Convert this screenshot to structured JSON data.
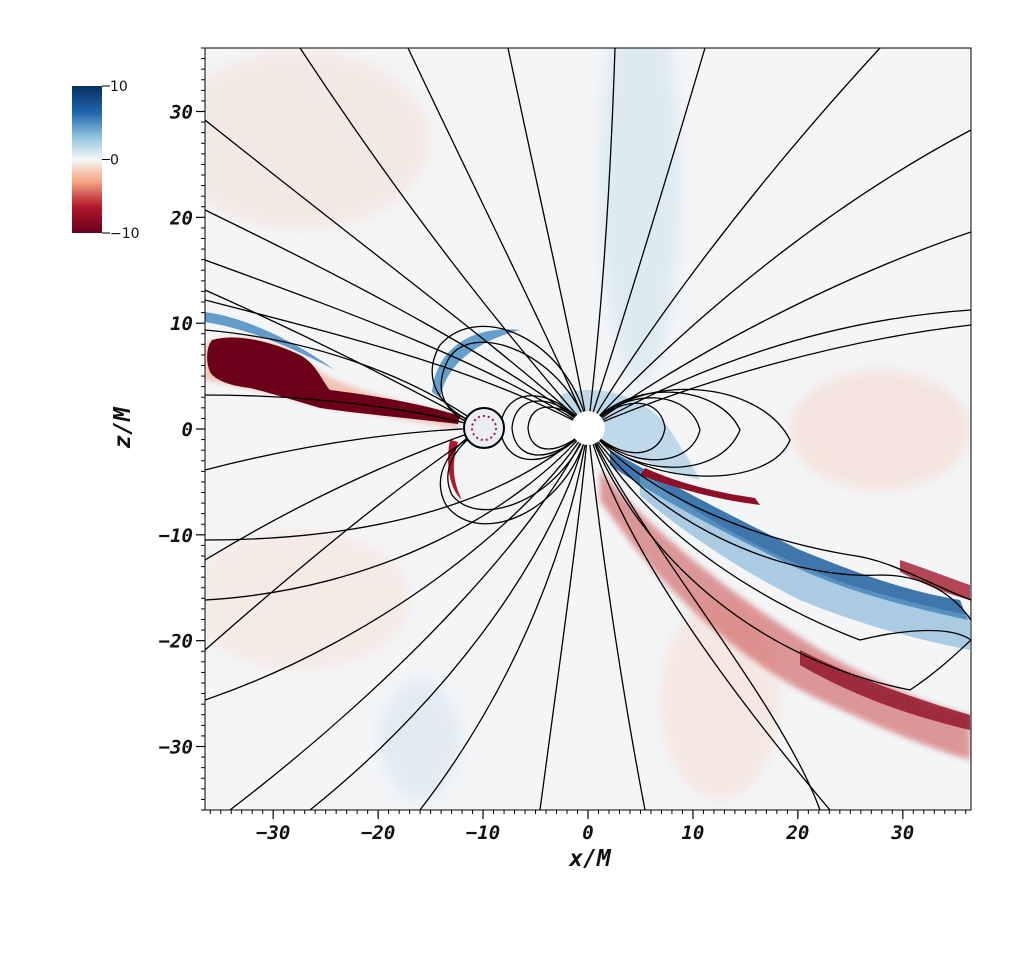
{
  "chart_data": {
    "type": "heatmap",
    "title": "",
    "xlabel": "x/M",
    "ylabel": "z/M",
    "xlim": [
      -36.5,
      36.5
    ],
    "ylim": [
      -36,
      36
    ],
    "x_ticks": [
      -30,
      -20,
      -10,
      0,
      10,
      20,
      30
    ],
    "y_ticks": [
      30,
      20,
      10,
      0,
      -10,
      -20,
      -30
    ],
    "x_tick_labels": [
      "−30",
      "−20",
      "−10",
      "0",
      "10",
      "20",
      "30"
    ],
    "y_tick_labels": [
      "30",
      "20",
      "10",
      "0",
      "−10",
      "−20",
      "−30"
    ],
    "colorbar": {
      "min": -10,
      "max": 10,
      "ticks": [
        10,
        0,
        -10
      ],
      "tick_labels": [
        "10",
        "0",
        "−10"
      ],
      "colormap": "RdBu",
      "position": "top-left"
    },
    "objects": [
      {
        "name": "primary",
        "x": 0,
        "z": 0,
        "radius": 1.6
      },
      {
        "name": "secondary",
        "x": -10,
        "z": 0,
        "radius": 1.8
      }
    ],
    "field_lines": "black",
    "grid": false
  }
}
